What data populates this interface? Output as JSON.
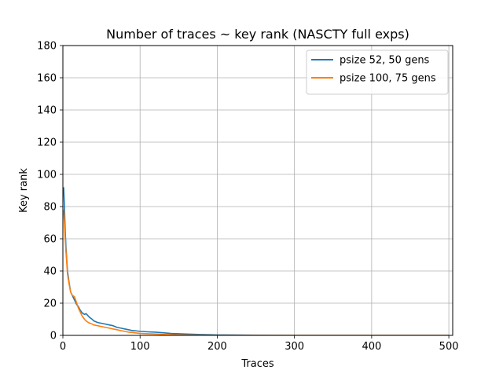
{
  "chart_data": {
    "type": "line",
    "title": "Number of traces ~ key rank (NASCTY full exps)",
    "xlabel": "Traces",
    "ylabel": "Key rank",
    "xlim": [
      0,
      505
    ],
    "ylim": [
      0,
      180
    ],
    "xticks": [
      0,
      100,
      200,
      300,
      400,
      500
    ],
    "yticks": [
      0,
      20,
      40,
      60,
      80,
      100,
      120,
      140,
      160,
      180
    ],
    "grid": true,
    "legend_position": "top-right",
    "series": [
      {
        "name": "psize 52, 50 gens",
        "color": "#1f77b4",
        "x": [
          1,
          2,
          3,
          4,
          5,
          6,
          8,
          10,
          12,
          15,
          18,
          20,
          22,
          25,
          28,
          30,
          33,
          35,
          38,
          40,
          45,
          50,
          55,
          60,
          65,
          70,
          75,
          80,
          85,
          90,
          95,
          100,
          110,
          120,
          130,
          140,
          150,
          160,
          180,
          200,
          220,
          250,
          300,
          350,
          400,
          450,
          500
        ],
        "y": [
          92,
          80,
          65,
          55,
          47,
          40,
          33,
          27,
          25,
          22,
          19,
          18,
          16,
          14,
          13,
          13.5,
          12,
          11,
          10,
          9,
          8,
          7.5,
          7,
          6.5,
          6,
          5,
          4.5,
          4,
          3.5,
          3,
          2.8,
          2.5,
          2.2,
          2,
          1.6,
          1.2,
          1,
          0.8,
          0.5,
          0.3,
          0.2,
          0.1,
          0,
          0,
          0,
          0,
          0
        ]
      },
      {
        "name": "psize 100, 75 gens",
        "color": "#ff7f0e",
        "x": [
          1,
          2,
          3,
          4,
          5,
          6,
          8,
          10,
          12,
          15,
          18,
          20,
          22,
          25,
          28,
          30,
          33,
          35,
          38,
          40,
          45,
          50,
          55,
          60,
          65,
          70,
          75,
          80,
          85,
          90,
          95,
          100,
          110,
          120,
          130,
          140,
          150,
          160,
          180,
          200,
          220,
          250,
          300,
          350,
          400,
          450,
          500
        ],
        "y": [
          78,
          70,
          60,
          52,
          45,
          38,
          32,
          27,
          25,
          24,
          20,
          17,
          15,
          12,
          10,
          9,
          8,
          7.5,
          7,
          6.5,
          6,
          5.5,
          5,
          4.5,
          4,
          3.5,
          3,
          2.5,
          2,
          1.8,
          1.5,
          1.2,
          1,
          0.8,
          0.6,
          0.4,
          0.3,
          0.2,
          0.1,
          0,
          0,
          0,
          0,
          0,
          0,
          0,
          0
        ]
      }
    ]
  }
}
